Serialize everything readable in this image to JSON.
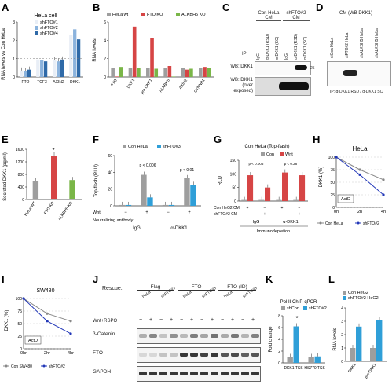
{
  "figure": {
    "panel_letters": [
      "A",
      "B",
      "C",
      "D",
      "E",
      "F",
      "G",
      "H",
      "I",
      "J",
      "K",
      "L"
    ]
  },
  "panel_a": {
    "title": "HeLa cell",
    "ylabel": "RNA levels vs Con HeLa",
    "legend": [
      "shFTO#1",
      "shFTO#2",
      "shFTO#4"
    ]
  },
  "panel_b": {
    "legend": [
      "HeLa wt",
      "FTO KO",
      "ALKBH5 KO"
    ],
    "ylabel": "RNA levels"
  },
  "panel_c": {
    "header_left": "Con HeLa CM",
    "header_right": "shFTO#2 CM",
    "ip_label": "IP:",
    "lanes": [
      "IgG",
      "α-DKK1 (RSD)",
      "α-DKK1 (SC)",
      "IgG",
      "α-DKK1 (RSD)",
      "α-DKK1 (SC)"
    ],
    "wb1": "WB: DKK1",
    "wb2": "WB: DKK1 (over exposed)",
    "size_marker": "25"
  },
  "panel_d": {
    "title": "CM (WB DKK1)",
    "lanes": [
      "siCon HeLa",
      "siFTO#2 HeLa",
      "shALKBH5 HeLa",
      "shALKBH5 HeLa"
    ],
    "footnote": "IP: α-DKK1 RSD / α-DKK1 SC"
  },
  "panel_e": {
    "ylabel": "Secreted DKK1 (pg/ml)",
    "star": "*"
  },
  "panel_f": {
    "legend": [
      "Con HeLa",
      "shFTO#3"
    ],
    "ylabel": "Top-flash (RLU)",
    "pvals": [
      "p < 0.006",
      "p < 0.01"
    ],
    "row_label1": "Wnt",
    "row_label2": "Neutralizing antibody",
    "groups": [
      "IgG",
      "α-DKK1"
    ]
  },
  "panel_g": {
    "title": "Con HeLa (Top-flash)",
    "legend": [
      "Con",
      "Wnt"
    ],
    "ylabel": "RLU",
    "pvals": [
      "p < 0.006",
      "p < 0.28"
    ],
    "row1": "Con HeG2 CM",
    "row2": "shFTO#2 CM",
    "groups": [
      "IgG",
      "α-DKK1"
    ],
    "xcaption": "Immunodepletion"
  },
  "panel_h": {
    "title": "HeLa",
    "ylabel": "DKK1 (%)",
    "annotation": "ActD",
    "legend": [
      "Con HeLa",
      "shFTO#2"
    ]
  },
  "panel_i": {
    "title": "SW480",
    "ylabel": "DKK1 (%)",
    "annotation": "ActD",
    "legend": [
      "Con SW480",
      "shFTO#2"
    ]
  },
  "panel_j": {
    "rescue_label": "Rescue:",
    "group_labels": [
      "Flag",
      "FTO",
      "FTO (ID)"
    ],
    "subgroups": [
      "HeLa",
      "shFTO#3"
    ],
    "wnt_label": "Wnt+RSPO",
    "blot_labels": [
      "β-Catenin",
      "FTO",
      "GAPDH"
    ]
  },
  "panel_k": {
    "title": "Pol II ChIP-qPCR",
    "legend": [
      "shCon",
      "shFTO#2"
    ],
    "ylabel": "Fold change",
    "star": "*"
  },
  "panel_l": {
    "legend": [
      "Con HeG2",
      "shFTO#2 HeG2"
    ],
    "ylabel": "RNA levels"
  },
  "chart_data": [
    {
      "type": "bar",
      "id": "A",
      "categories": [
        "FTO",
        "TCF3",
        "AXIN2",
        "DKK1"
      ],
      "series": [
        {
          "name": "shFTO#1",
          "values": [
            0.35,
            0.95,
            0.9,
            2.3
          ]
        },
        {
          "name": "shFTO#2",
          "values": [
            0.3,
            0.9,
            0.85,
            2.6
          ]
        },
        {
          "name": "shFTO#4",
          "values": [
            0.4,
            0.85,
            0.95,
            2.05
          ]
        }
      ],
      "ylim": [
        0,
        3
      ],
      "yticks": [
        0,
        1,
        2,
        3
      ]
    },
    {
      "type": "bar",
      "id": "B",
      "categories": [
        "FTO",
        "DKK1",
        "pre-DKK1",
        "ALKBH5",
        "AXIN2",
        "CTNNB1"
      ],
      "series": [
        {
          "name": "HeLa wt",
          "values": [
            1,
            1,
            1,
            1,
            1,
            1
          ]
        },
        {
          "name": "FTO KO",
          "values": [
            0.05,
            5.5,
            4.2,
            1.2,
            0.8,
            1.1
          ]
        },
        {
          "name": "ALKBH5 KO",
          "values": [
            1.1,
            1.0,
            0.9,
            0.05,
            0.9,
            1.0
          ]
        }
      ],
      "ylim": [
        0,
        6
      ],
      "yticks": [
        0,
        2,
        4,
        6
      ]
    },
    {
      "type": "bar",
      "id": "E",
      "categories": [
        "HeLa WT",
        "FTO KO",
        "ALKBH5 KO"
      ],
      "values": [
        600,
        1400,
        620
      ],
      "colors": [
        "#9e9e9e",
        "#d64545",
        "#7ab648"
      ],
      "ylim": [
        0,
        1600
      ],
      "yticks": [
        0,
        400,
        800,
        1200,
        1600
      ]
    },
    {
      "type": "bar",
      "id": "F",
      "categories": [
        "IgG −",
        "IgG +",
        "α-DKK1 −",
        "α-DKK1 +"
      ],
      "series": [
        {
          "name": "Con HeLa",
          "values": [
            1,
            37,
            1,
            33
          ]
        },
        {
          "name": "shFTO#3",
          "values": [
            1,
            10,
            1,
            25
          ]
        }
      ],
      "ylim": [
        0,
        60
      ],
      "yticks": [
        0,
        20,
        40,
        60
      ]
    },
    {
      "type": "bar",
      "id": "G",
      "categories": [
        "IgG 1",
        "IgG 2",
        "α-DKK1 1",
        "α-DKK1 2"
      ],
      "series": [
        {
          "name": "Con",
          "values": [
            4,
            4,
            4,
            4
          ]
        },
        {
          "name": "Wnt",
          "values": [
            95,
            50,
            105,
            95
          ]
        }
      ],
      "ylim": [
        0,
        150
      ],
      "yticks": [
        0,
        50,
        100,
        150
      ]
    },
    {
      "type": "line",
      "id": "H",
      "x": [
        "0h",
        "2h",
        "4h"
      ],
      "series": [
        {
          "name": "Con HeLa",
          "values": [
            100,
            75,
            55
          ]
        },
        {
          "name": "shFTO#2",
          "values": [
            100,
            65,
            25
          ]
        }
      ],
      "xlabel": "",
      "ylim": [
        0,
        100
      ],
      "yticks": [
        0,
        25,
        50,
        75,
        100
      ]
    },
    {
      "type": "line",
      "id": "I",
      "x": [
        "0hr",
        "2hr",
        "4hr"
      ],
      "series": [
        {
          "name": "Con SW480",
          "values": [
            100,
            70,
            55
          ]
        },
        {
          "name": "shFTO#2",
          "values": [
            100,
            55,
            30
          ]
        }
      ],
      "ylim": [
        0,
        100
      ],
      "yticks": [
        0,
        25,
        50,
        75,
        100
      ]
    },
    {
      "type": "bar",
      "id": "K",
      "categories": [
        "DKK1 TSS",
        "HS770 TSS"
      ],
      "series": [
        {
          "name": "shCon",
          "values": [
            1,
            1
          ]
        },
        {
          "name": "shFTO#2",
          "values": [
            6.2,
            1.1
          ]
        }
      ],
      "ylim": [
        0,
        8
      ],
      "yticks": [
        0,
        2,
        4,
        6,
        8
      ]
    },
    {
      "type": "bar",
      "id": "L",
      "categories": [
        "DKK1",
        "pre-DKK1"
      ],
      "series": [
        {
          "name": "Con HeG2",
          "values": [
            1,
            1
          ]
        },
        {
          "name": "shFTO#2 HeG2",
          "values": [
            2.6,
            3.1
          ]
        }
      ],
      "ylim": [
        0,
        4
      ],
      "yticks": [
        0,
        1,
        2,
        3,
        4
      ]
    }
  ]
}
